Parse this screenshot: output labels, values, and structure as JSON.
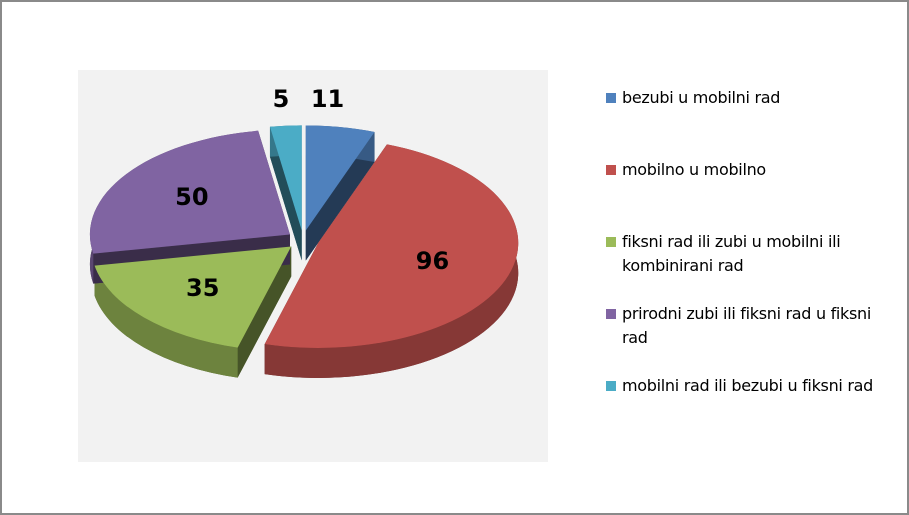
{
  "chart_data": {
    "type": "pie",
    "categories": [
      "bezubi u mobilni rad",
      "mobilno u mobilno",
      "fiksni rad ili zubi u mobilni ili kombinirani rad",
      "prirodni zubi ili fiksni rad u fiksni rad",
      "mobilni rad ili bezubi u fiksni rad"
    ],
    "values": [
      11,
      96,
      35,
      50,
      5
    ],
    "colors": [
      "#4f81bd",
      "#c0504d",
      "#9bbb59",
      "#8064a2",
      "#4bacc6"
    ],
    "legend": "right"
  }
}
